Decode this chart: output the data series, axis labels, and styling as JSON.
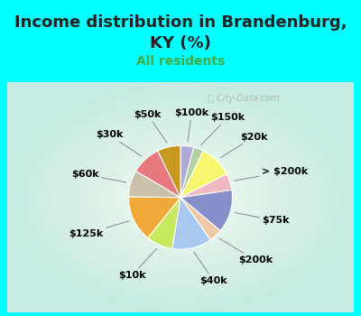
{
  "title": "Income distribution in Brandenburg,\nKY (%)",
  "subtitle": "All residents",
  "background_color": "#00FFFF",
  "chart_bg_color": "#c8e8d8",
  "labels": [
    "$100k",
    "$150k",
    "$20k",
    "> $200k",
    "$75k",
    "$200k",
    "$40k",
    "$10k",
    "$125k",
    "$60k",
    "$30k",
    "$50k"
  ],
  "values": [
    4,
    3,
    10,
    5,
    13,
    4,
    12,
    8,
    14,
    8,
    9,
    7
  ],
  "colors": [
    "#b0a8d8",
    "#b0d0a0",
    "#f8f870",
    "#f0b8c0",
    "#8890cc",
    "#f0c8a8",
    "#a8c8f0",
    "#c8e860",
    "#f0a838",
    "#c8c0a8",
    "#e87880",
    "#c89820"
  ],
  "label_fontsize": 8,
  "title_fontsize": 13,
  "subtitle_fontsize": 10,
  "subtitle_color": "#44aa44",
  "watermark": "ⓘ City-Data.com",
  "watermark_color": "#aaaaaa"
}
